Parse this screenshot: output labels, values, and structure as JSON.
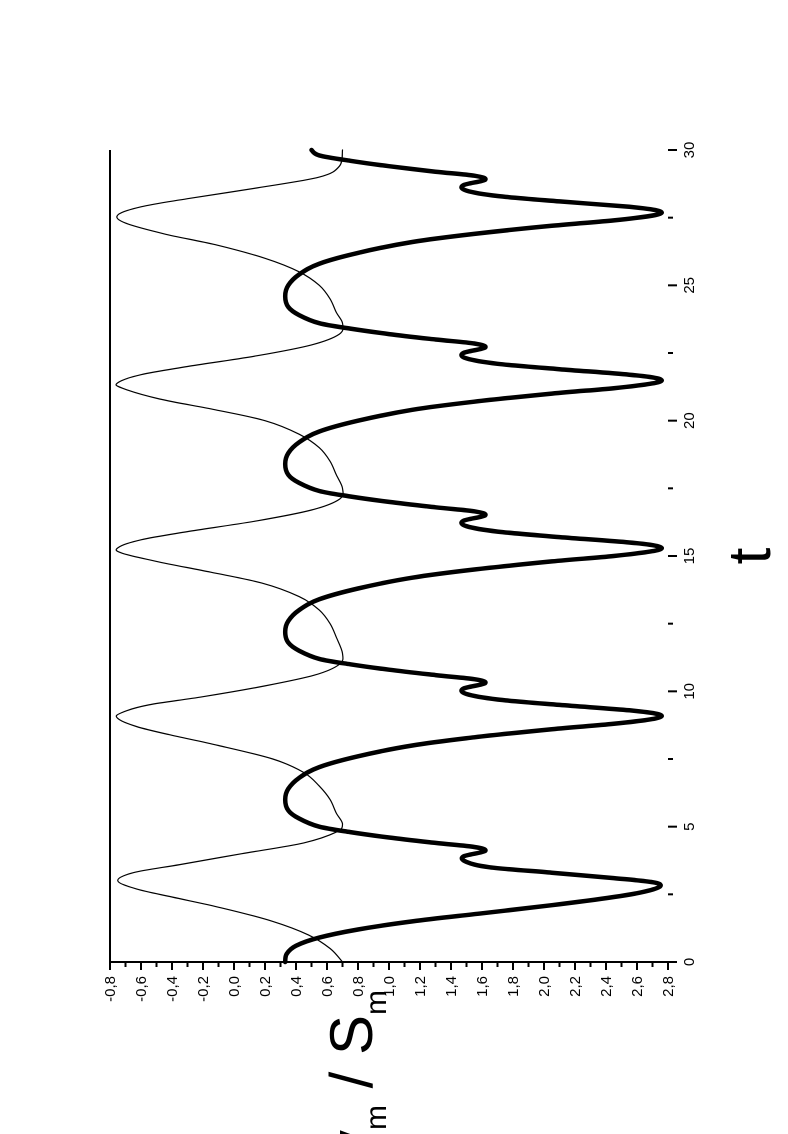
{
  "chart_data": {
    "type": "line",
    "orientation": "rotated-90-ccw",
    "title": "",
    "xlabel": "t",
    "ylabel": "v_m / S_m",
    "ylabel_main": "v",
    "ylabel_sub1": "m",
    "ylabel_sep": " / S",
    "ylabel_sub2": "m",
    "xlim": [
      0,
      30
    ],
    "ylim": [
      -0.8,
      2.8
    ],
    "x_major_ticks": [
      0,
      5,
      10,
      15,
      20,
      25,
      30
    ],
    "x_tick_labels": [
      "0",
      "5",
      "10",
      "15",
      "20",
      "25",
      "30"
    ],
    "y_major_ticks": [
      -0.8,
      -0.6,
      -0.4,
      -0.2,
      0.0,
      0.2,
      0.4,
      0.6,
      0.8,
      1.0,
      1.2,
      1.4,
      1.6,
      1.8,
      2.0,
      2.2,
      2.4,
      2.6,
      2.8
    ],
    "y_tick_labels": [
      "-0,8",
      "-0,6",
      "-0,4",
      "-0,2",
      "0,0",
      "0,2",
      "0,4",
      "0,6",
      "0,8",
      "1,0",
      "1,2",
      "1,4",
      "1,6",
      "1,8",
      "2,0",
      "2,2",
      "2,4",
      "2,6",
      "2,8"
    ],
    "grid": false,
    "legend": "none",
    "series": [
      {
        "style": "thick",
        "color": "#000000",
        "x": [
          0.0,
          0.3,
          0.6,
          0.9,
          1.2,
          1.5,
          1.8,
          2.1,
          2.4,
          2.6,
          2.8,
          2.95,
          3.1,
          3.3,
          3.5,
          3.7,
          3.9,
          4.1,
          4.25,
          4.4,
          4.6,
          4.8,
          5.0,
          5.3,
          5.6,
          6.0,
          6.4,
          6.8,
          7.2,
          7.6,
          8.0,
          8.3,
          8.6,
          8.8,
          9.0,
          9.15,
          9.3,
          9.5,
          9.7,
          9.9,
          10.1,
          10.3,
          10.45,
          10.6,
          10.8,
          11.0,
          11.2,
          11.5,
          11.8,
          12.2,
          12.6,
          13.0,
          13.4,
          13.8,
          14.2,
          14.5,
          14.8,
          15.0,
          15.2,
          15.35,
          15.5,
          15.7,
          15.9,
          16.1,
          16.3,
          16.5,
          16.65,
          16.8,
          17.0,
          17.2,
          17.4,
          17.7,
          18.0,
          18.4,
          18.8,
          19.2,
          19.6,
          20.0,
          20.4,
          20.7,
          21.0,
          21.2,
          21.4,
          21.55,
          21.7,
          21.9,
          22.1,
          22.3,
          22.5,
          22.7,
          22.85,
          23.0,
          23.2,
          23.4,
          23.6,
          23.9,
          24.2,
          24.6,
          25.0,
          25.4,
          25.8,
          26.2,
          26.6,
          26.9,
          27.2,
          27.4,
          27.6,
          27.75,
          27.9,
          28.1,
          28.3,
          28.5,
          28.7,
          28.9,
          29.05,
          29.2,
          29.4,
          29.6,
          29.8,
          30.0
        ],
        "y": [
          0.33,
          0.34,
          0.4,
          0.55,
          0.8,
          1.15,
          1.6,
          2.05,
          2.45,
          2.65,
          2.75,
          2.7,
          2.45,
          2.05,
          1.65,
          1.5,
          1.48,
          1.62,
          1.55,
          1.3,
          1.0,
          0.75,
          0.55,
          0.42,
          0.35,
          0.33,
          0.35,
          0.42,
          0.55,
          0.8,
          1.15,
          1.55,
          2.05,
          2.45,
          2.72,
          2.74,
          2.55,
          2.1,
          1.7,
          1.5,
          1.48,
          1.62,
          1.55,
          1.3,
          1.0,
          0.75,
          0.55,
          0.42,
          0.35,
          0.33,
          0.35,
          0.42,
          0.55,
          0.8,
          1.15,
          1.55,
          2.05,
          2.45,
          2.72,
          2.74,
          2.55,
          2.1,
          1.7,
          1.5,
          1.48,
          1.62,
          1.55,
          1.3,
          1.0,
          0.75,
          0.55,
          0.42,
          0.35,
          0.33,
          0.35,
          0.42,
          0.55,
          0.8,
          1.15,
          1.55,
          2.05,
          2.45,
          2.72,
          2.74,
          2.55,
          2.1,
          1.7,
          1.5,
          1.48,
          1.62,
          1.55,
          1.3,
          1.0,
          0.75,
          0.55,
          0.42,
          0.35,
          0.33,
          0.35,
          0.42,
          0.55,
          0.8,
          1.15,
          1.55,
          2.05,
          2.45,
          2.72,
          2.74,
          2.55,
          2.1,
          1.7,
          1.5,
          1.48,
          1.62,
          1.55,
          1.3,
          1.0,
          0.75,
          0.55,
          0.5
        ]
      },
      {
        "style": "thin",
        "color": "#000000",
        "x": [
          0.0,
          0.5,
          1.0,
          1.5,
          2.0,
          2.4,
          2.7,
          3.0,
          3.3,
          3.6,
          4.0,
          4.4,
          4.8,
          5.1,
          5.5,
          6.0,
          6.5,
          7.0,
          7.5,
          8.0,
          8.4,
          8.7,
          9.0,
          9.2,
          9.5,
          9.8,
          10.2,
          10.6,
          11.0,
          11.4,
          12.0,
          12.5,
          13.0,
          13.5,
          14.0,
          14.4,
          14.8,
          15.1,
          15.3,
          15.6,
          15.9,
          16.3,
          16.7,
          17.1,
          17.5,
          18.0,
          18.5,
          19.0,
          19.5,
          20.0,
          20.4,
          20.8,
          21.2,
          21.4,
          21.7,
          22.0,
          22.4,
          22.8,
          23.2,
          23.6,
          24.0,
          24.5,
          25.0,
          25.5,
          26.0,
          26.5,
          26.9,
          27.3,
          27.6,
          27.9,
          28.2,
          28.6,
          29.0,
          29.4,
          30.0
        ],
        "y": [
          0.7,
          0.62,
          0.48,
          0.25,
          -0.08,
          -0.4,
          -0.63,
          -0.75,
          -0.65,
          -0.35,
          0.05,
          0.45,
          0.66,
          0.7,
          0.66,
          0.62,
          0.55,
          0.45,
          0.25,
          -0.1,
          -0.42,
          -0.63,
          -0.75,
          -0.73,
          -0.55,
          -0.2,
          0.2,
          0.52,
          0.68,
          0.7,
          0.66,
          0.62,
          0.55,
          0.42,
          0.18,
          -0.15,
          -0.5,
          -0.72,
          -0.75,
          -0.6,
          -0.3,
          0.15,
          0.5,
          0.68,
          0.7,
          0.66,
          0.62,
          0.55,
          0.42,
          0.2,
          -0.12,
          -0.48,
          -0.72,
          -0.75,
          -0.6,
          -0.3,
          0.15,
          0.5,
          0.68,
          0.7,
          0.66,
          0.62,
          0.55,
          0.42,
          0.2,
          -0.12,
          -0.45,
          -0.7,
          -0.75,
          -0.6,
          -0.3,
          0.15,
          0.55,
          0.68,
          0.7
        ]
      }
    ]
  }
}
